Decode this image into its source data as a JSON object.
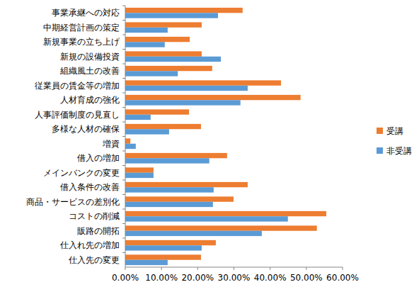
{
  "chart_data": {
    "type": "bar",
    "orientation": "horizontal",
    "grid": false,
    "legend": "right",
    "categories": [
      "事業承継への対応",
      "中期経営計画の策定",
      "新規事業の立ち上げ",
      "新規の設備投資",
      "組織風土の改善",
      "従業員の賃金等の増加",
      "人材育成の強化",
      "人事評価制度の見直し",
      "多様な人材の確保",
      "増資",
      "借入の増加",
      "メインバンクの変更",
      "借入条件の改善",
      "商品・サービスの差別化",
      "コストの削減",
      "販路の開拓",
      "仕入れ先の増加",
      "仕入先の変更"
    ],
    "series": [
      {
        "name": "受講",
        "color": "#ed7d31",
        "values": [
          32.4,
          21.1,
          17.8,
          21.1,
          24.0,
          43.0,
          48.4,
          17.6,
          20.9,
          1.4,
          28.1,
          7.8,
          33.8,
          29.9,
          55.5,
          52.9,
          25.0,
          20.9
        ]
      },
      {
        "name": "非受講",
        "color": "#5b9bd5",
        "values": [
          25.6,
          11.7,
          10.9,
          26.4,
          14.5,
          33.8,
          31.8,
          7.0,
          12.1,
          2.9,
          23.2,
          7.8,
          24.4,
          24.2,
          44.9,
          37.7,
          21.1,
          11.7
        ]
      }
    ],
    "xlim": [
      0,
      60
    ],
    "xticks": [
      {
        "value": 0,
        "label": "0.00%"
      },
      {
        "value": 10,
        "label": "10.00%"
      },
      {
        "value": 20,
        "label": "20.00%"
      },
      {
        "value": 30,
        "label": "30.00%"
      },
      {
        "value": 40,
        "label": "40.00%"
      },
      {
        "value": 50,
        "label": "50.00%"
      },
      {
        "value": 60,
        "label": "60.00%"
      }
    ]
  }
}
